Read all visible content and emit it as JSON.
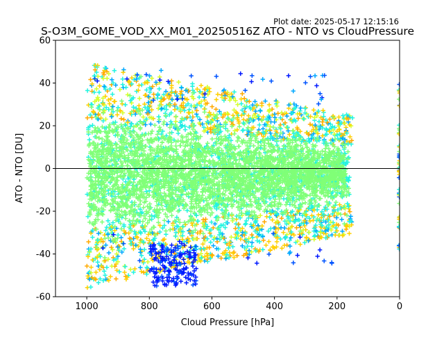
{
  "chart_data": {
    "type": "scatter",
    "title": "S-O3M_GOME_VOD_XX_M01_20250516Z ATO - NTO vs CloudPressure",
    "plot_date": "Plot date: 2025-05-17 12:15:16",
    "xlabel": "Cloud Pressure [hPa]",
    "ylabel": "ATO - NTO [DU]",
    "xlim": [
      1100,
      0
    ],
    "ylim": [
      -60,
      60
    ],
    "x_reversed": true,
    "x_ticks": [
      1000,
      800,
      600,
      400,
      200,
      0
    ],
    "y_ticks": [
      -60,
      -40,
      -20,
      0,
      20,
      40,
      60
    ],
    "zero_line": 0,
    "marker": "+",
    "grid": false,
    "colors": [
      "#80ff77",
      "#7dff7a",
      "#ffd000",
      "#22f4e0",
      "#ffa900",
      "#0019ff",
      "#0054ff",
      "#00a8ff",
      "#d6ff29"
    ],
    "point_cloud": {
      "x_range": [
        1000,
        150
      ],
      "y_center": 0,
      "y_spread_max": 45,
      "dense_core": [
        -30,
        35
      ]
    },
    "series_annotations": {
      "blue_cluster": {
        "x_range": [
          800,
          650
        ],
        "y_range": [
          -55,
          -35
        ]
      },
      "edge_column": {
        "x": 0,
        "y_range": [
          -40,
          40
        ]
      }
    }
  }
}
